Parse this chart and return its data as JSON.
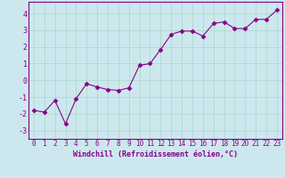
{
  "x": [
    0,
    1,
    2,
    3,
    4,
    5,
    6,
    7,
    8,
    9,
    10,
    11,
    12,
    13,
    14,
    15,
    16,
    17,
    18,
    19,
    20,
    21,
    22,
    23
  ],
  "y": [
    -1.8,
    -1.9,
    -1.2,
    -2.6,
    -1.1,
    -0.2,
    -0.4,
    -0.55,
    -0.6,
    -0.45,
    0.9,
    1.0,
    1.85,
    2.75,
    2.95,
    2.95,
    2.65,
    3.4,
    3.5,
    3.1,
    3.1,
    3.65,
    3.65,
    4.2
  ],
  "xlabel": "Windchill (Refroidissement éolien,°C)",
  "ylim": [
    -3.5,
    4.7
  ],
  "xlim": [
    -0.5,
    23.5
  ],
  "yticks": [
    -3,
    -2,
    -1,
    0,
    1,
    2,
    3,
    4
  ],
  "xticks": [
    0,
    1,
    2,
    3,
    4,
    5,
    6,
    7,
    8,
    9,
    10,
    11,
    12,
    13,
    14,
    15,
    16,
    17,
    18,
    19,
    20,
    21,
    22,
    23
  ],
  "line_color": "#880088",
  "marker": "D",
  "marker_size": 2.5,
  "line_width": 0.8,
  "bg_color": "#cce8ee",
  "grid_color": "#aad4cc",
  "xlabel_color": "#880088",
  "tick_color": "#880088",
  "xlabel_fontsize": 6.0,
  "tick_fontsize": 5.5
}
